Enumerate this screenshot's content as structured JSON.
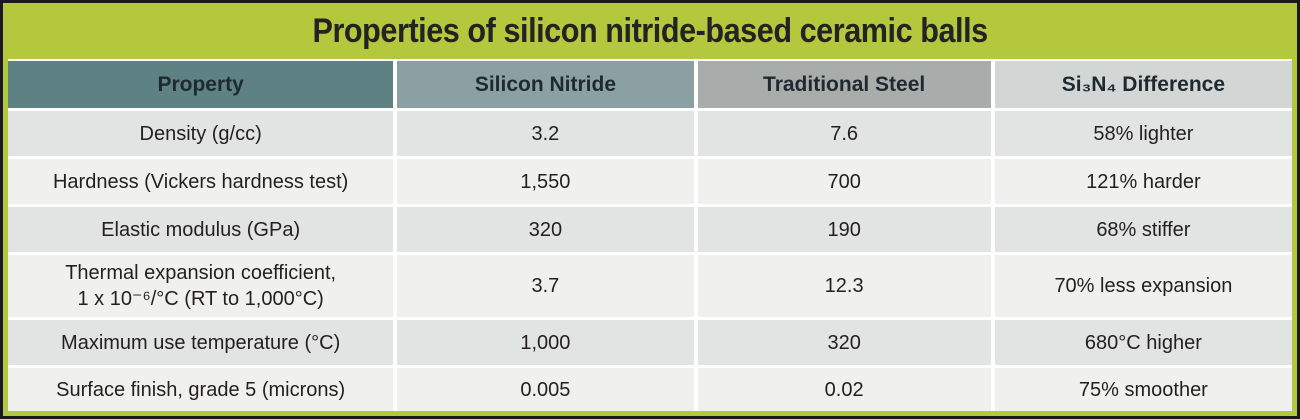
{
  "title": "Properties of silicon nitride-based ceramic balls",
  "colors": {
    "frame_green": "#b3c83d",
    "outer_border": "#1a1a1a",
    "header_property": "#5e8283",
    "header_silicon_nitride": "#8ba0a3",
    "header_traditional_steel": "#a8acab",
    "header_difference": "#d2d6d5",
    "row_odd": "#e2e3e3",
    "row_even": "#f0f1ef",
    "text": "#231f20"
  },
  "chart_data": {
    "type": "table",
    "title": "Properties of silicon nitride-based ceramic balls",
    "columns": [
      "Property",
      "Silicon Nitride",
      "Traditional Steel",
      "Si₃N₄ Difference"
    ],
    "rows": [
      {
        "property": "Density (g/cc)",
        "silicon_nitride": "3.2",
        "traditional_steel": "7.6",
        "difference": "58% lighter"
      },
      {
        "property": "Hardness (Vickers hardness test)",
        "silicon_nitride": "1,550",
        "traditional_steel": "700",
        "difference": "121% harder"
      },
      {
        "property": "Elastic modulus (GPa)",
        "silicon_nitride": "320",
        "traditional_steel": "190",
        "difference": "68% stiffer"
      },
      {
        "property": "Thermal expansion coefficient,\n1 x 10⁻⁶/°C (RT to 1,000°C)",
        "silicon_nitride": "3.7",
        "traditional_steel": "12.3",
        "difference": "70% less expansion"
      },
      {
        "property": "Maximum use temperature (°C)",
        "silicon_nitride": "1,000",
        "traditional_steel": "320",
        "difference": "680°C higher"
      },
      {
        "property": "Surface finish, grade 5 (microns)",
        "silicon_nitride": "0.005",
        "traditional_steel": "0.02",
        "difference": "75% smoother"
      }
    ]
  }
}
